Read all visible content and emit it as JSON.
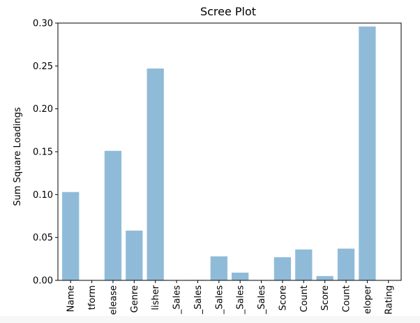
{
  "chart_data": {
    "type": "bar",
    "title": "Scree Plot",
    "xlabel": "",
    "ylabel": "Sum Square Loadings",
    "ylim": [
      0,
      0.3
    ],
    "yticks": [
      0.0,
      0.05,
      0.1,
      0.15,
      0.2,
      0.25,
      0.3
    ],
    "ytick_labels": [
      "0.00",
      "0.05",
      "0.10",
      "0.15",
      "0.20",
      "0.25",
      "0.30"
    ],
    "grid": false,
    "bar_color": "#8fbbd9",
    "categories": [
      "Name",
      "tform",
      "elease",
      "Genre",
      "lisher",
      "_Sales",
      "_Sales",
      "_Sales",
      "_Sales",
      "_Sales",
      "Score",
      "Count",
      "Score",
      "Count",
      "eloper",
      "Rating"
    ],
    "values": [
      0.103,
      0.0,
      0.151,
      0.058,
      0.247,
      0.0,
      0.0005,
      0.028,
      0.009,
      0.0,
      0.027,
      0.036,
      0.005,
      0.037,
      0.296,
      0.0
    ]
  }
}
